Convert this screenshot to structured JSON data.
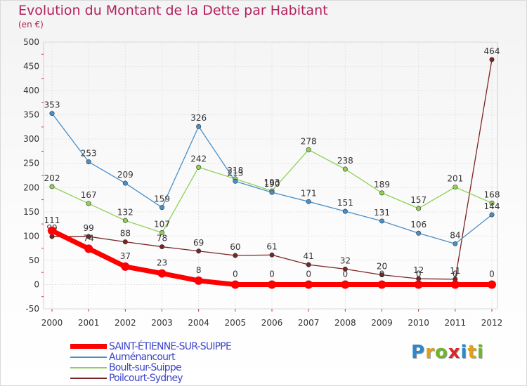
{
  "header": {
    "title": "Evolution du Montant de la Dette par Habitant",
    "subtitle": "(en €)"
  },
  "logo": {
    "letters": [
      "P",
      "r",
      "o",
      "x",
      "i",
      "t",
      "i"
    ],
    "colors": [
      "#2f87c8",
      "#e0a017",
      "#6fb52c",
      "#d9262d",
      "#2f87c8",
      "#e0a017",
      "#6fb52c"
    ]
  },
  "chart_data": {
    "type": "line",
    "title": "Evolution du Montant de la Dette par Habitant",
    "subtitle": "(en €)",
    "x": [
      "2000",
      "2001",
      "2002",
      "2003",
      "2004",
      "2005",
      "2006",
      "2007",
      "2008",
      "2009",
      "2010",
      "2011",
      "2012"
    ],
    "ylim": [
      -50,
      500
    ],
    "yticks": [
      -50,
      0,
      50,
      100,
      150,
      200,
      250,
      300,
      350,
      400,
      450,
      500
    ],
    "grid": true,
    "legend": "bottom-left",
    "series": [
      {
        "name": "SAINT-ÉTIENNE-SUR-SUIPPE",
        "color": "#ff0000",
        "values": [
          111,
          74,
          37,
          23,
          8,
          0,
          0,
          0,
          0,
          0,
          0,
          0,
          0
        ],
        "labels": [
          "111",
          "74",
          "37",
          "23",
          "8",
          "0",
          "0",
          "0",
          "0",
          "0",
          "0",
          "0",
          "0"
        ]
      },
      {
        "name": "Auménancourt",
        "color": "#4a90c8",
        "values": [
          353,
          253,
          209,
          159,
          326,
          213,
          190,
          171,
          151,
          131,
          106,
          84,
          144
        ],
        "labels": [
          "353",
          "253",
          "209",
          "159",
          "326",
          "213",
          "190",
          "171",
          "151",
          "131",
          "106",
          "84",
          "144"
        ]
      },
      {
        "name": "Boult-sur-Suippe",
        "color": "#8fd155",
        "values": [
          202,
          167,
          132,
          107,
          242,
          218,
          193,
          278,
          238,
          189,
          157,
          201,
          168
        ],
        "labels": [
          "202",
          "167",
          "132",
          "107",
          "242",
          "218",
          "193",
          "278",
          "238",
          "189",
          "157",
          "201",
          "168"
        ]
      },
      {
        "name": "Poilcourt-Sydney",
        "color": "#7a2525",
        "values": [
          99,
          99,
          88,
          78,
          69,
          60,
          61,
          41,
          32,
          20,
          12,
          11,
          464
        ],
        "labels": [
          "99",
          "99",
          "88",
          "78",
          "69",
          "60",
          "61",
          "41",
          "32",
          "20",
          "12",
          "11",
          "464"
        ]
      }
    ]
  }
}
